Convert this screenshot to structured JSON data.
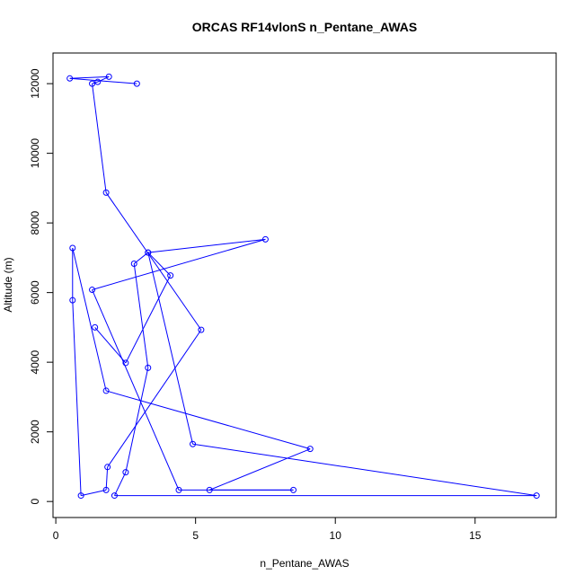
{
  "chart_data": {
    "type": "line",
    "title": "ORCAS RF14vlonS n_Pentane_AWAS",
    "xlabel": "n_Pentane_AWAS",
    "ylabel": "Altitude (m)",
    "xlim": [
      -0.1,
      17.9
    ],
    "ylim": [
      -460,
      12880
    ],
    "x_ticks": [
      0,
      5,
      10,
      15
    ],
    "x_tick_labels": [
      "0",
      "5",
      "10",
      "15"
    ],
    "y_ticks": [
      0,
      2000,
      4000,
      6000,
      8000,
      10000,
      12000
    ],
    "y_tick_labels": [
      "0",
      "2000",
      "4000",
      "6000",
      "8000",
      "10000",
      "12000"
    ],
    "grid": false,
    "series": [
      {
        "color": "#0000ff",
        "marker": "open-circle",
        "points": [
          {
            "x": 2.9,
            "y": 12000
          },
          {
            "x": 0.5,
            "y": 12150
          },
          {
            "x": 1.9,
            "y": 12200
          },
          {
            "x": 1.5,
            "y": 12050
          },
          {
            "x": 1.3,
            "y": 12000
          },
          {
            "x": 1.8,
            "y": 8870
          },
          {
            "x": 5.2,
            "y": 4930
          },
          {
            "x": 1.85,
            "y": 990
          },
          {
            "x": 1.8,
            "y": 330
          },
          {
            "x": 0.9,
            "y": 170
          },
          {
            "x": 0.6,
            "y": 5780
          },
          {
            "x": 0.6,
            "y": 7280
          },
          {
            "x": 1.8,
            "y": 3180
          },
          {
            "x": 9.1,
            "y": 1510
          },
          {
            "x": 5.5,
            "y": 330
          },
          {
            "x": 8.5,
            "y": 330
          },
          {
            "x": 4.4,
            "y": 330
          },
          {
            "x": 1.3,
            "y": 6080
          },
          {
            "x": 7.5,
            "y": 7530
          },
          {
            "x": 3.3,
            "y": 7150
          },
          {
            "x": 4.9,
            "y": 1650
          },
          {
            "x": 17.2,
            "y": 170
          },
          {
            "x": 2.1,
            "y": 170
          },
          {
            "x": 2.5,
            "y": 840
          },
          {
            "x": 3.3,
            "y": 3840
          },
          {
            "x": 2.8,
            "y": 6830
          },
          {
            "x": 3.3,
            "y": 7150
          },
          {
            "x": 4.1,
            "y": 6490
          },
          {
            "x": 2.5,
            "y": 3980
          },
          {
            "x": 1.4,
            "y": 5000
          }
        ]
      }
    ]
  }
}
